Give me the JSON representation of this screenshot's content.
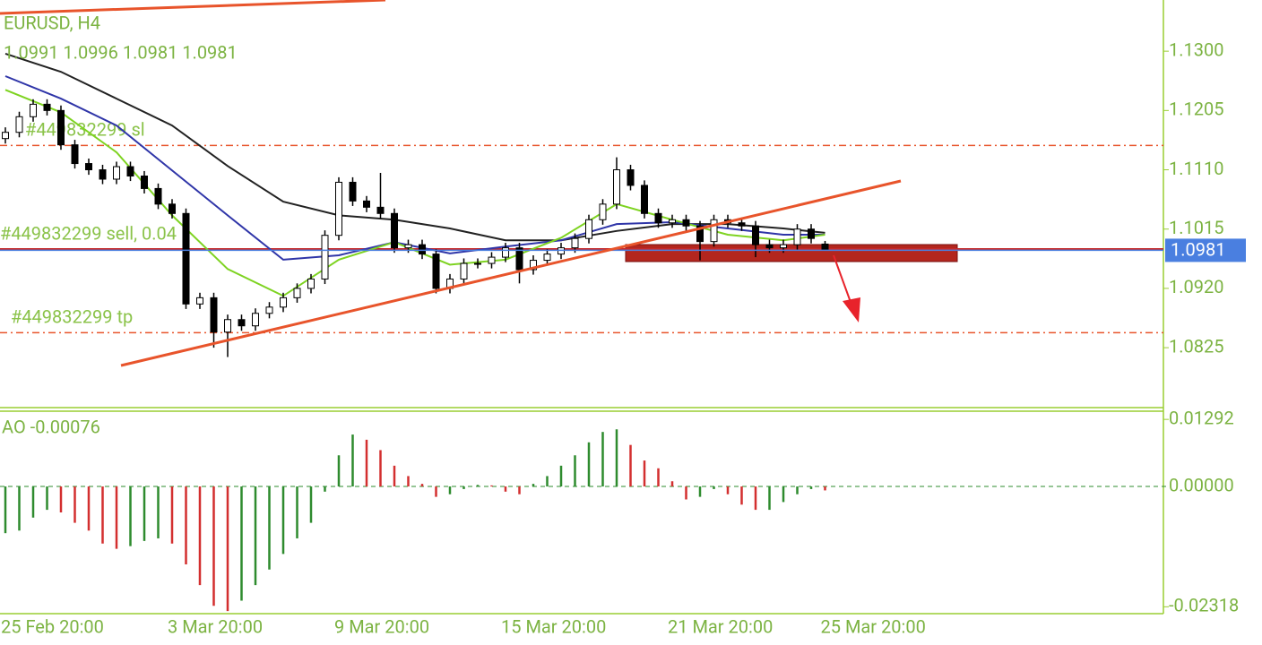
{
  "chart_data": [
    {
      "type": "candlestick",
      "title": "EURUSD, H4",
      "subtitle": "1.0991 1.0996 1.0981 1.0981",
      "categories": [
        "25 Feb 20:00",
        null,
        null,
        null,
        null,
        null,
        null,
        null,
        null,
        null,
        null,
        null,
        "3 Mar 20:00",
        null,
        null,
        null,
        null,
        null,
        null,
        null,
        null,
        null,
        null,
        null,
        "9 Mar 20:00",
        null,
        null,
        null,
        null,
        null,
        null,
        null,
        null,
        null,
        null,
        null,
        "15 Mar 20:00",
        null,
        null,
        null,
        null,
        null,
        null,
        null,
        null,
        null,
        null,
        null,
        "21 Mar 20:00",
        null,
        null,
        null,
        null,
        null,
        null,
        null,
        null,
        null,
        null,
        "25 Mar 20:00"
      ],
      "open": [
        1.116,
        1.117,
        1.1195,
        1.1215,
        1.1205,
        1.115,
        1.112,
        1.111,
        1.1095,
        1.1115,
        1.11,
        1.108,
        1.1055,
        1.104,
        1.0895,
        1.0905,
        1.085,
        1.087,
        1.086,
        1.088,
        1.089,
        1.0905,
        1.092,
        1.0935,
        1.1005,
        1.109,
        1.106,
        1.105,
        1.104,
        1.0985,
        1.099,
        1.0975,
        1.092,
        1.0935,
        1.096,
        1.096,
        1.097,
        1.0985,
        1.095,
        1.0965,
        1.0975,
        1.0985,
        1.1,
        1.103,
        1.1055,
        1.111,
        1.1085,
        1.104,
        1.1025,
        1.103,
        1.102,
        1.0995,
        1.103,
        1.1025,
        1.102,
        1.099,
        1.0985,
        1.099,
        1.1015,
        1.0991
      ],
      "high": [
        1.1178,
        1.1203,
        1.1223,
        1.1223,
        1.1213,
        1.1158,
        1.1128,
        1.1118,
        1.1123,
        1.1123,
        1.1108,
        1.1088,
        1.1063,
        1.1048,
        1.0913,
        1.0913,
        1.0878,
        1.0878,
        1.0888,
        1.0898,
        1.0913,
        1.0928,
        1.0943,
        1.1013,
        1.1098,
        1.1098,
        1.1068,
        1.1105,
        1.1048,
        1.0998,
        1.0998,
        1.0983,
        1.0943,
        1.0968,
        1.0968,
        1.0978,
        1.0993,
        1.0993,
        1.0973,
        1.0983,
        1.0993,
        1.1008,
        1.1038,
        1.1063,
        1.113,
        1.1118,
        1.1093,
        1.1048,
        1.1038,
        1.1038,
        1.1028,
        1.1038,
        1.1038,
        1.1033,
        1.1028,
        1.0998,
        1.0998,
        1.1023,
        1.1023,
        1.0996
      ],
      "low": [
        1.1152,
        1.1162,
        1.1187,
        1.1197,
        1.1142,
        1.1112,
        1.1102,
        1.1087,
        1.1087,
        1.1092,
        1.1072,
        1.1047,
        1.1032,
        1.0887,
        1.0887,
        1.0825,
        1.081,
        1.0852,
        1.0852,
        1.0872,
        1.0882,
        1.0897,
        1.0912,
        1.0927,
        1.0997,
        1.1052,
        1.1042,
        1.1032,
        1.0977,
        1.0977,
        1.0967,
        1.0912,
        1.0912,
        1.0927,
        1.0952,
        1.0952,
        1.0962,
        1.0928,
        1.0942,
        1.0957,
        1.0967,
        1.0977,
        1.0992,
        1.1022,
        1.1047,
        1.1077,
        1.1032,
        1.1017,
        1.1017,
        1.1012,
        1.0965,
        1.0987,
        1.1017,
        1.1012,
        1.097,
        1.0977,
        1.0977,
        1.0982,
        1.0992,
        1.0981
      ],
      "close": [
        1.117,
        1.1195,
        1.1215,
        1.1205,
        1.115,
        1.112,
        1.111,
        1.1095,
        1.1115,
        1.11,
        1.108,
        1.1055,
        1.104,
        1.0895,
        1.0905,
        1.085,
        1.087,
        1.086,
        1.088,
        1.089,
        1.0905,
        1.092,
        1.0935,
        1.1005,
        1.109,
        1.106,
        1.105,
        1.104,
        1.0985,
        1.099,
        1.0975,
        1.092,
        1.0935,
        1.096,
        1.096,
        1.097,
        1.0985,
        1.095,
        1.0965,
        1.0975,
        1.0985,
        1.1,
        1.103,
        1.1055,
        1.111,
        1.1085,
        1.104,
        1.1025,
        1.103,
        1.102,
        1.0995,
        1.103,
        1.1025,
        1.102,
        1.099,
        1.0985,
        1.099,
        1.1015,
        1.1,
        1.0981
      ],
      "series": [
        {
          "color": "#222222",
          "x": [
            0,
            4,
            8,
            12,
            16,
            20,
            24,
            28,
            32,
            36,
            40,
            44,
            48,
            52,
            56,
            59
          ],
          "values": [
            1.1296,
            1.1267,
            1.1224,
            1.1181,
            1.1116,
            1.1059,
            1.1037,
            1.103,
            1.1016,
            1.0997,
            1.0997,
            1.1012,
            1.1023,
            1.1023,
            1.1016,
            1.1009
          ]
        },
        {
          "color": "#2f35a8",
          "x": [
            0,
            4,
            8,
            12,
            16,
            20,
            24,
            28,
            32,
            36,
            40,
            44,
            48,
            52,
            56,
            59
          ],
          "values": [
            1.126,
            1.1224,
            1.1181,
            1.1109,
            1.1037,
            1.0966,
            1.0973,
            1.0994,
            1.0976,
            1.0987,
            1.0997,
            1.1023,
            1.1026,
            1.1016,
            1.1006,
            1.1006
          ]
        },
        {
          "color": "#7ed321",
          "x": [
            0,
            4,
            8,
            12,
            16,
            20,
            24,
            28,
            32,
            36,
            40,
            44,
            48,
            52,
            56,
            59
          ],
          "values": [
            1.1238,
            1.1202,
            1.1138,
            1.1037,
            1.0951,
            1.0908,
            1.0966,
            1.0994,
            1.0958,
            1.0966,
            1.1001,
            1.1055,
            1.103,
            1.1006,
            1.0997,
            1.1006
          ]
        }
      ],
      "ylim": [
        1.0729,
        1.1382
      ],
      "yticks": [
        {
          "value": 1.13,
          "label": "1.1300"
        },
        1.1205,
        {
          "value": 1.111,
          "label": "1.1110"
        },
        1.1015,
        {
          "value": 1.092,
          "label": "1.0920"
        },
        1.0825
      ],
      "annotations": [
        {
          "label": "#449832299 sl",
          "value": 1.1149,
          "dashed": true,
          "color": "#e8542b"
        },
        {
          "label": "#449832299 sell, 0.04",
          "value": 1.0983,
          "dashed": false,
          "color": "#c62828"
        },
        {
          "label": "#449832299 tp",
          "value": 1.0849,
          "dashed": true,
          "color": "#e8542b"
        }
      ],
      "current_price": 1.0981,
      "current_price_color": "#4a7fe0",
      "up_color": "#ffffff",
      "down_color": "#000000"
    },
    {
      "type": "bar",
      "title": "AO -0.00076",
      "values": [
        -0.009,
        -0.0085,
        -0.006,
        -0.0045,
        -0.005,
        -0.007,
        -0.0085,
        -0.011,
        -0.012,
        -0.0115,
        -0.0105,
        -0.01,
        -0.011,
        -0.015,
        -0.019,
        -0.023,
        -0.024,
        -0.022,
        -0.019,
        -0.016,
        -0.013,
        -0.01,
        -0.007,
        -0.001,
        0.006,
        0.01,
        0.009,
        0.007,
        0.004,
        0.002,
        0.0005,
        -0.002,
        -0.0015,
        -0.0005,
        0.0003,
        0.0002,
        -0.001,
        -0.0015,
        0.0005,
        0.002,
        0.004,
        0.006,
        0.0085,
        0.0105,
        0.011,
        0.008,
        0.005,
        0.0035,
        0.001,
        -0.0025,
        -0.002,
        -0.0005,
        -0.0015,
        -0.0035,
        -0.0045,
        -0.0045,
        -0.003,
        -0.0015,
        -0.0005,
        -0.00076
      ],
      "ylim": [
        -0.0245,
        0.0145
      ],
      "yticks": [
        0.01292,
        {
          "value": 0,
          "label": "0.00000"
        },
        -0.02318
      ],
      "up_color": "#2e8b2e",
      "down_color": "#d32f2f"
    }
  ]
}
